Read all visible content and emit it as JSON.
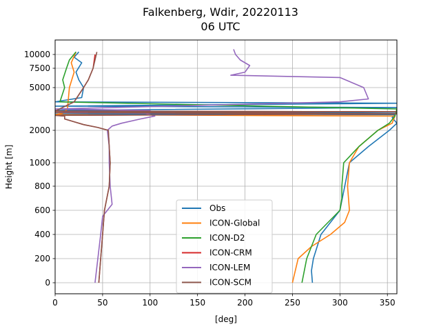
{
  "chart_data": {
    "type": "line",
    "title": "Falkenberg, Wdir, 20220113",
    "subtitle": "06 UTC",
    "xlabel": "[deg]",
    "ylabel": "Height [m]",
    "xlim": [
      0,
      360
    ],
    "x_ticks": [
      0,
      50,
      100,
      150,
      200,
      250,
      300,
      350
    ],
    "y_ticks": [
      0,
      200,
      400,
      600,
      800,
      1000,
      2000,
      5000,
      7500,
      10000
    ],
    "grid": true,
    "legend_position": "lower center",
    "series": [
      {
        "name": "Obs",
        "color": "#1f77b4",
        "points": [
          [
            271,
            0
          ],
          [
            270,
            100
          ],
          [
            272,
            200
          ],
          [
            280,
            400
          ],
          [
            300,
            600
          ],
          [
            310,
            1000
          ],
          [
            330,
            1500
          ],
          [
            352,
            2000
          ],
          [
            360,
            2500
          ],
          [
            355,
            2900
          ],
          [
            358,
            3100
          ],
          [
            0,
            3150
          ],
          [
            360,
            3200
          ],
          [
            0,
            3400
          ],
          [
            360,
            3600
          ],
          [
            0,
            3700
          ],
          [
            360,
            3900
          ],
          [
            0,
            4000
          ],
          [
            28,
            4300
          ],
          [
            30,
            5000
          ],
          [
            25,
            6000
          ],
          [
            22,
            7000
          ],
          [
            28,
            8500
          ],
          [
            20,
            9500
          ],
          [
            25,
            10500
          ]
        ]
      },
      {
        "name": "ICON-Global",
        "color": "#ff7f0e",
        "points": [
          [
            250,
            0
          ],
          [
            256,
            200
          ],
          [
            270,
            300
          ],
          [
            290,
            400
          ],
          [
            305,
            500
          ],
          [
            310,
            600
          ],
          [
            308,
            800
          ],
          [
            310,
            1000
          ],
          [
            320,
            1500
          ],
          [
            340,
            2000
          ],
          [
            355,
            2500
          ],
          [
            358,
            3000
          ],
          [
            0,
            3100
          ],
          [
            8,
            3200
          ],
          [
            13,
            3500
          ],
          [
            15,
            5000
          ],
          [
            20,
            7000
          ],
          [
            17,
            8500
          ],
          [
            22,
            10500
          ]
        ]
      },
      {
        "name": "ICON-D2",
        "color": "#2ca02c",
        "points": [
          [
            260,
            0
          ],
          [
            265,
            200
          ],
          [
            275,
            400
          ],
          [
            300,
            600
          ],
          [
            302,
            700
          ],
          [
            302,
            800
          ],
          [
            304,
            1000
          ],
          [
            320,
            1500
          ],
          [
            340,
            2000
          ],
          [
            352,
            2500
          ],
          [
            358,
            3000
          ],
          [
            360,
            3500
          ],
          [
            5,
            4000
          ],
          [
            10,
            5000
          ],
          [
            8,
            6000
          ],
          [
            12,
            7500
          ],
          [
            15,
            9000
          ],
          [
            22,
            10500
          ]
        ]
      },
      {
        "name": "ICON-CRM",
        "color": "#d62728",
        "points": [
          [
            46,
            0
          ],
          [
            48,
            200
          ],
          [
            50,
            400
          ],
          [
            52,
            600
          ],
          [
            57,
            800
          ],
          [
            58,
            1000
          ],
          [
            57,
            1500
          ],
          [
            56,
            2000
          ],
          [
            45,
            2200
          ],
          [
            30,
            2400
          ],
          [
            20,
            2600
          ],
          [
            10,
            2800
          ],
          [
            10,
            3000
          ],
          [
            0,
            3050
          ],
          [
            360,
            3150
          ],
          [
            0,
            3250
          ],
          [
            360,
            3300
          ],
          [
            0,
            3350
          ],
          [
            20,
            4000
          ],
          [
            30,
            5000
          ],
          [
            35,
            6000
          ],
          [
            40,
            7500
          ],
          [
            42,
            10000
          ]
        ]
      },
      {
        "name": "ICON-LEM",
        "color": "#9467bd",
        "points": [
          [
            42,
            0
          ],
          [
            45,
            200
          ],
          [
            48,
            400
          ],
          [
            50,
            550
          ],
          [
            60,
            650
          ],
          [
            58,
            800
          ],
          [
            57,
            1000
          ],
          [
            57,
            1500
          ],
          [
            55,
            2000
          ],
          [
            60,
            2300
          ],
          [
            70,
            2500
          ],
          [
            90,
            2800
          ],
          [
            105,
            3000
          ],
          [
            95,
            3200
          ],
          [
            0,
            3250
          ],
          [
            100,
            3400
          ],
          [
            0,
            3500
          ],
          [
            120,
            3700
          ],
          [
            300,
            4000
          ],
          [
            330,
            4200
          ],
          [
            325,
            5000
          ],
          [
            300,
            6300
          ],
          [
            185,
            6600
          ],
          [
            200,
            7000
          ],
          [
            205,
            8000
          ],
          [
            195,
            9000
          ],
          [
            190,
            10000
          ],
          [
            188,
            11000
          ]
        ]
      },
      {
        "name": "ICON-SCM",
        "color": "#8c564b",
        "points": [
          [
            46,
            0
          ],
          [
            48,
            200
          ],
          [
            50,
            400
          ],
          [
            52,
            600
          ],
          [
            57,
            800
          ],
          [
            58,
            1000
          ],
          [
            57,
            1500
          ],
          [
            56,
            2000
          ],
          [
            45,
            2200
          ],
          [
            30,
            2400
          ],
          [
            20,
            2600
          ],
          [
            10,
            2800
          ],
          [
            10,
            3000
          ],
          [
            0,
            3050
          ],
          [
            360,
            3150
          ],
          [
            0,
            3250
          ],
          [
            360,
            3300
          ],
          [
            0,
            3350
          ],
          [
            20,
            4000
          ],
          [
            30,
            5000
          ],
          [
            35,
            6000
          ],
          [
            40,
            7500
          ],
          [
            44,
            10500
          ]
        ]
      }
    ]
  }
}
